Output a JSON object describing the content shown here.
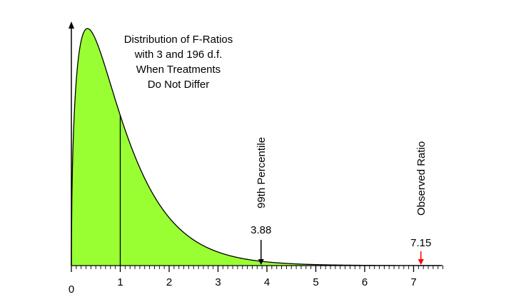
{
  "chart_data": {
    "type": "area",
    "title_lines": [
      "Distribution of F-Ratios",
      "with 3 and 196 d.f.",
      "When Treatments",
      "Do Not Differ"
    ],
    "df1": 3,
    "df2": 196,
    "xlim": [
      0,
      7.6
    ],
    "x_major_ticks": [
      0,
      1,
      2,
      3,
      4,
      5,
      6,
      7
    ],
    "x_tick_labels": [
      "0",
      "1",
      "2",
      "3",
      "4",
      "5",
      "6",
      "7"
    ],
    "x_minor_step": 0.1,
    "mean_line_x": 1,
    "fill_color": "#99ff33",
    "annotations": [
      {
        "name": "99th Percentile",
        "x": 3.88,
        "value_label": "3.88",
        "arrow_color": "#000000"
      },
      {
        "name": "Observed Ratio",
        "x": 7.15,
        "value_label": "7.15",
        "arrow_color": "#ff0000"
      }
    ]
  }
}
